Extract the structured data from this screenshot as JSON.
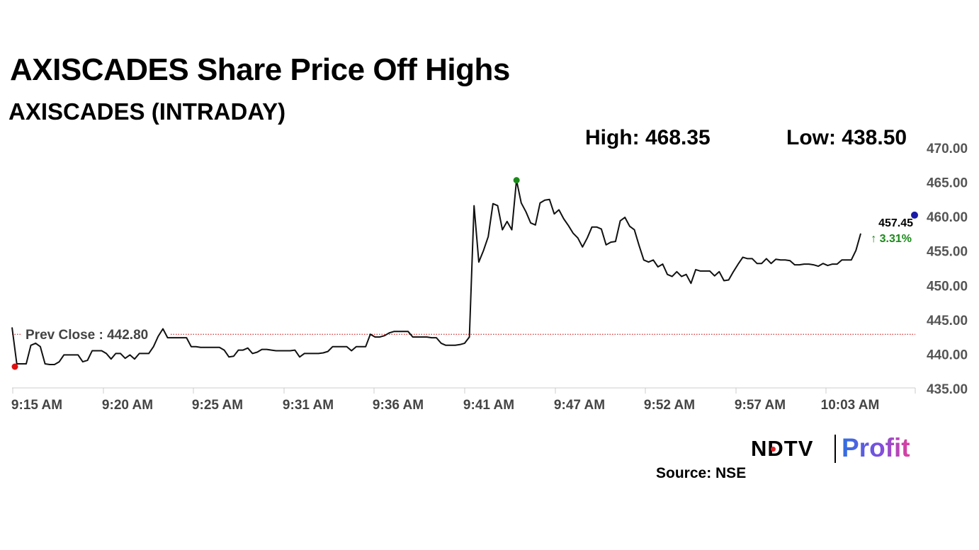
{
  "header": {
    "title": "AXISCADES Share Price Off Highs",
    "subtitle": "AXISCADES (INTRADAY)",
    "high_label": "High: 468.35",
    "low_label": "Low: 438.50"
  },
  "chart_data": {
    "type": "line",
    "title": "AXISCADES Share Price Off Highs",
    "subtitle": "AXISCADES (INTRADAY)",
    "xlabel": "",
    "ylabel": "",
    "ylim": [
      435,
      470
    ],
    "y_ticks": [
      "435.00",
      "440.00",
      "445.00",
      "450.00",
      "455.00",
      "460.00",
      "465.00",
      "470.00"
    ],
    "x_ticks": [
      "9:15 AM",
      "9:20 AM",
      "9:25 AM",
      "9:31 AM",
      "9:36 AM",
      "9:41 AM",
      "9:47 AM",
      "9:52 AM",
      "9:57 AM",
      "10:03 AM"
    ],
    "grid": false,
    "series": [
      {
        "values": [
          443.8,
          438.5,
          438.5,
          438.5,
          441.2,
          441.5,
          441.0,
          438.5,
          438.4,
          438.4,
          438.8,
          439.8,
          439.8,
          439.8,
          439.8,
          438.8,
          439.0,
          440.4,
          440.4,
          440.4,
          440.0,
          439.2,
          440.0,
          440.0,
          439.3,
          439.8,
          439.2,
          440.0,
          440.0,
          440.0,
          441.0,
          442.5,
          443.6,
          442.3,
          442.3,
          442.3,
          442.3,
          442.3,
          441.0,
          441.0,
          440.9,
          440.9,
          440.9,
          440.9,
          440.9,
          440.5,
          439.5,
          439.6,
          440.5,
          440.5,
          440.8,
          440.0,
          440.2,
          440.6,
          440.6,
          440.5,
          440.4,
          440.4,
          440.4,
          440.4,
          440.5,
          439.5,
          440.0,
          440.0,
          440.0,
          440.0,
          440.1,
          440.3,
          441.0,
          441.0,
          441.0,
          441.0,
          440.4,
          441.0,
          441.0,
          441.0,
          442.8,
          442.4,
          442.4,
          442.6,
          443.0,
          443.2,
          443.2,
          443.2,
          443.2,
          442.4,
          442.4,
          442.4,
          442.4,
          442.3,
          442.3,
          441.5,
          441.2,
          441.2,
          441.2,
          441.3,
          441.5,
          442.4,
          461.5,
          453.3,
          455.0,
          457.0,
          461.8,
          461.5,
          458.0,
          459.2,
          458.0,
          465.2,
          461.9,
          460.6,
          459.0,
          458.7,
          461.9,
          462.3,
          462.4,
          460.3,
          460.9,
          459.6,
          458.6,
          457.5,
          456.8,
          455.5,
          456.8,
          458.4,
          458.4,
          458.1,
          455.8,
          456.2,
          456.3,
          459.3,
          459.8,
          458.5,
          458.0,
          455.7,
          453.6,
          453.3,
          453.6,
          452.6,
          453.0,
          451.5,
          451.2,
          451.9,
          451.2,
          451.5,
          450.2,
          452.2,
          452.0,
          452.0,
          452.0,
          451.3,
          451.9,
          450.6,
          450.7,
          451.9,
          453.0,
          454.0,
          453.8,
          453.8,
          453.1,
          453.1,
          453.8,
          453.1,
          453.7,
          453.6,
          453.6,
          453.5,
          452.9,
          452.9,
          453.0,
          453.0,
          452.9,
          452.7,
          453.1,
          452.8,
          453.0,
          453.0,
          453.6,
          453.6,
          453.6,
          455.0,
          457.45
        ]
      }
    ],
    "prev_close": 442.8,
    "prev_close_label": "Prev Close : 442.80",
    "last_value_label": "457.45",
    "change_label": "↑ 3.31%",
    "colors": {
      "line": "#111111",
      "prev_close": "#cc0000",
      "low_marker": "#e01010",
      "high_marker": "#1a8a1a",
      "last_marker": "#1a1aa8",
      "change_text": "#1a8a1a",
      "axis": "#cccccc"
    }
  },
  "footer": {
    "brand_left": "NDTV",
    "brand_right": "Profit",
    "source": "Source: NSE"
  }
}
